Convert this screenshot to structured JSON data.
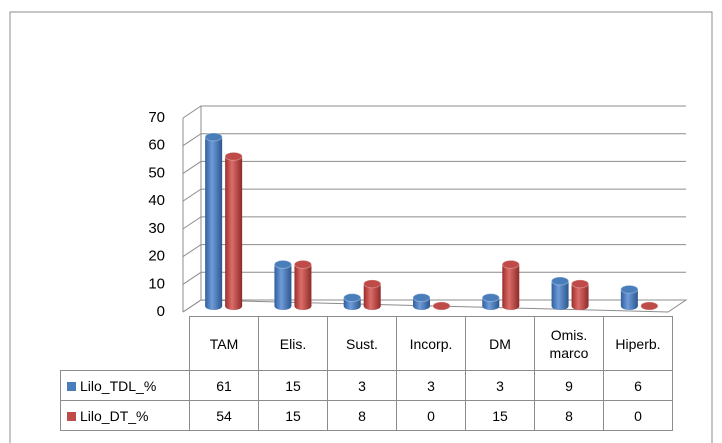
{
  "chart_data": {
    "type": "bar3d",
    "categories": [
      "TAM",
      "Elis.",
      "Sust.",
      "Incorp.",
      "DM",
      "Omis. marco",
      "Hiperb."
    ],
    "series": [
      {
        "name": "Lilo_TDL_%",
        "color": "#4a7ebb",
        "values": [
          61,
          15,
          3,
          3,
          3,
          9,
          6
        ]
      },
      {
        "name": "Lilo_DT_%",
        "color": "#be4b48",
        "values": [
          54,
          15,
          8,
          0,
          15,
          8,
          0
        ]
      }
    ],
    "ylim": [
      0,
      70
    ],
    "yticks": [
      0,
      10,
      20,
      30,
      40,
      50,
      60,
      70
    ],
    "grid": true
  }
}
